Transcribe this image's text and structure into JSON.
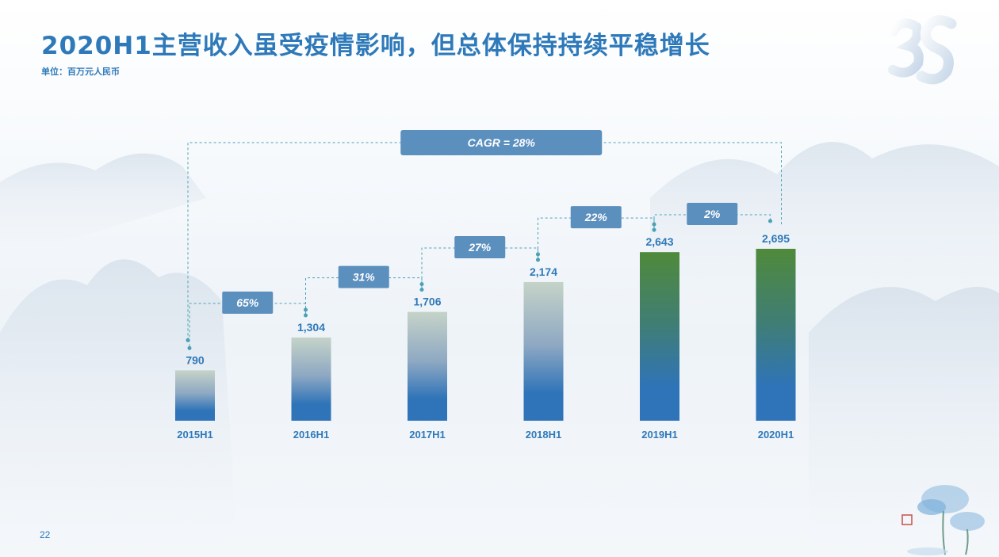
{
  "page": {
    "title": "2020H1主营收入虽受疫情影响，但总体保持持续平稳增长",
    "unit": "单位：百万元人民币",
    "page_number": "22"
  },
  "colors": {
    "title": "#2e79b9",
    "bar_bottom": "#2f74b8",
    "bar_top_light": "#c5d3c8",
    "bar_top_green": "#4f8a3a",
    "annotation_box": "#5b8fbe",
    "connector": "#4aa0b5"
  },
  "chart_data": {
    "type": "bar",
    "categories": [
      "2015H1",
      "2016H1",
      "2017H1",
      "2018H1",
      "2019H1",
      "2020H1"
    ],
    "values": [
      790,
      1304,
      1706,
      2174,
      2643,
      2695
    ],
    "value_labels": [
      "790",
      "1,304",
      "1,706",
      "2,174",
      "2,643",
      "2,695"
    ],
    "ylim": [
      0,
      3000
    ],
    "growth_annotations": [
      {
        "from": "2015H1",
        "to": "2016H1",
        "label": "65%"
      },
      {
        "from": "2016H1",
        "to": "2017H1",
        "label": "31%"
      },
      {
        "from": "2017H1",
        "to": "2018H1",
        "label": "27%"
      },
      {
        "from": "2018H1",
        "to": "2019H1",
        "label": "22%"
      },
      {
        "from": "2019H1",
        "to": "2020H1",
        "label": "2%"
      }
    ],
    "cagr": {
      "from": "2015H1",
      "to": "2020H1",
      "label": "CAGR = 28%"
    },
    "grid": false,
    "legend": "none"
  }
}
